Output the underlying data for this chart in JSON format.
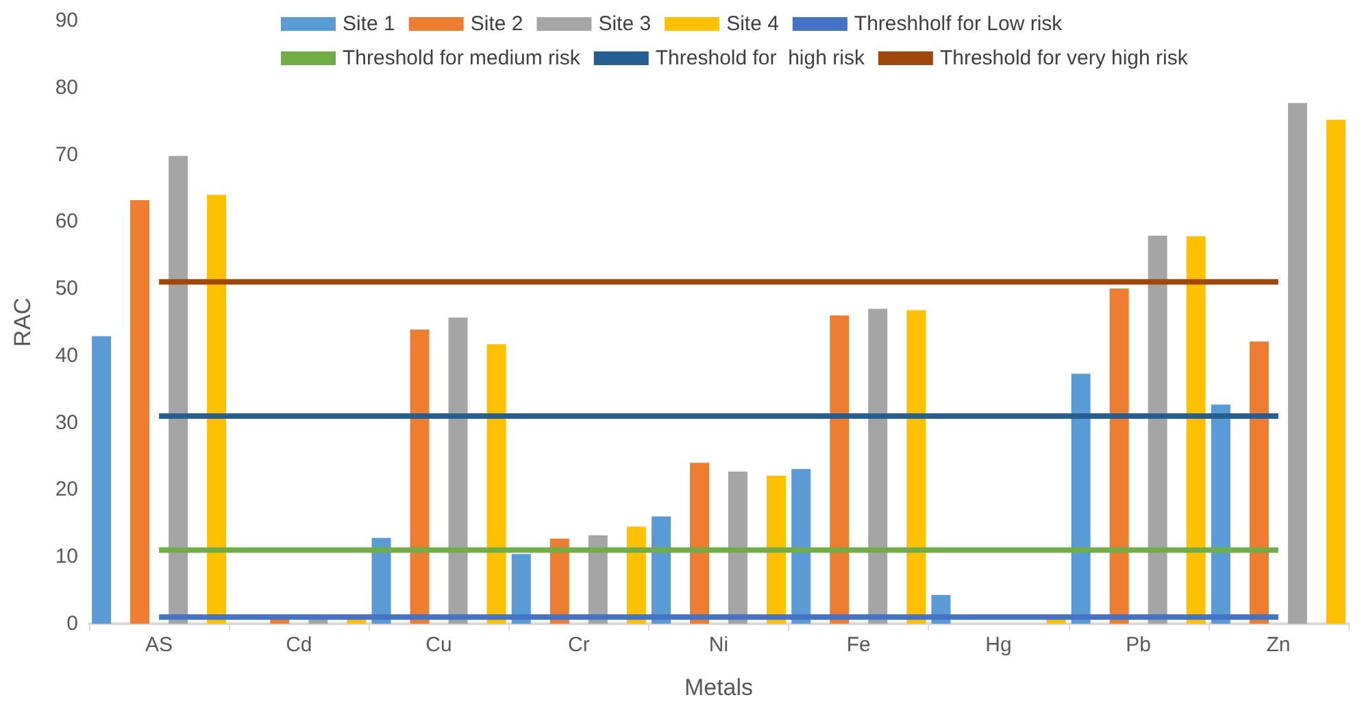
{
  "chart_data": {
    "type": "bar",
    "xlabel": "Metals",
    "ylabel": "RAC",
    "categories": [
      "AS",
      "Cd",
      "Cu",
      "Cr",
      "Ni",
      "Fe",
      "Hg",
      "Pb",
      "Zn"
    ],
    "series": [
      {
        "name": "Site 1",
        "color": "#5b9bd5",
        "values": [
          42.9,
          0,
          12.8,
          10.4,
          16,
          23.1,
          4.3,
          37.3,
          32.7
        ]
      },
      {
        "name": "Site 2",
        "color": "#ed7d31",
        "values": [
          63.2,
          1.2,
          43.9,
          12.7,
          24,
          46,
          0,
          50,
          42.1
        ]
      },
      {
        "name": "Site 3",
        "color": "#a5a5a5",
        "values": [
          69.8,
          1.2,
          45.7,
          13.2,
          22.7,
          47,
          0,
          57.9,
          77.7
        ]
      },
      {
        "name": "Site 4",
        "color": "#ffc000",
        "values": [
          64,
          1.2,
          41.7,
          14.5,
          22.1,
          46.8,
          1.2,
          57.8,
          75.2
        ]
      },
      {
        "name": "Threshholf for Low risk",
        "type": "line",
        "color": "#4472c4",
        "values": [
          1,
          1,
          1,
          1,
          1,
          1,
          1,
          1,
          1
        ]
      },
      {
        "name": "Threshold for medium risk",
        "type": "line",
        "color": "#70ad47",
        "values": [
          11,
          11,
          11,
          11,
          11,
          11,
          11,
          11,
          11
        ]
      },
      {
        "name": "Threshold for  high risk",
        "type": "line",
        "color": "#255e91",
        "values": [
          31,
          31,
          31,
          31,
          31,
          31,
          31,
          31,
          31
        ]
      },
      {
        "name": "Threshold for very high risk",
        "type": "line",
        "color": "#9e480e",
        "values": [
          51,
          51,
          51,
          51,
          51,
          51,
          51,
          51,
          51
        ]
      }
    ],
    "ylim": [
      0,
      90
    ],
    "yticks": [
      0,
      10,
      20,
      30,
      40,
      50,
      60,
      70,
      80,
      90
    ],
    "grid": false,
    "legend": "top",
    "marker": "none"
  }
}
